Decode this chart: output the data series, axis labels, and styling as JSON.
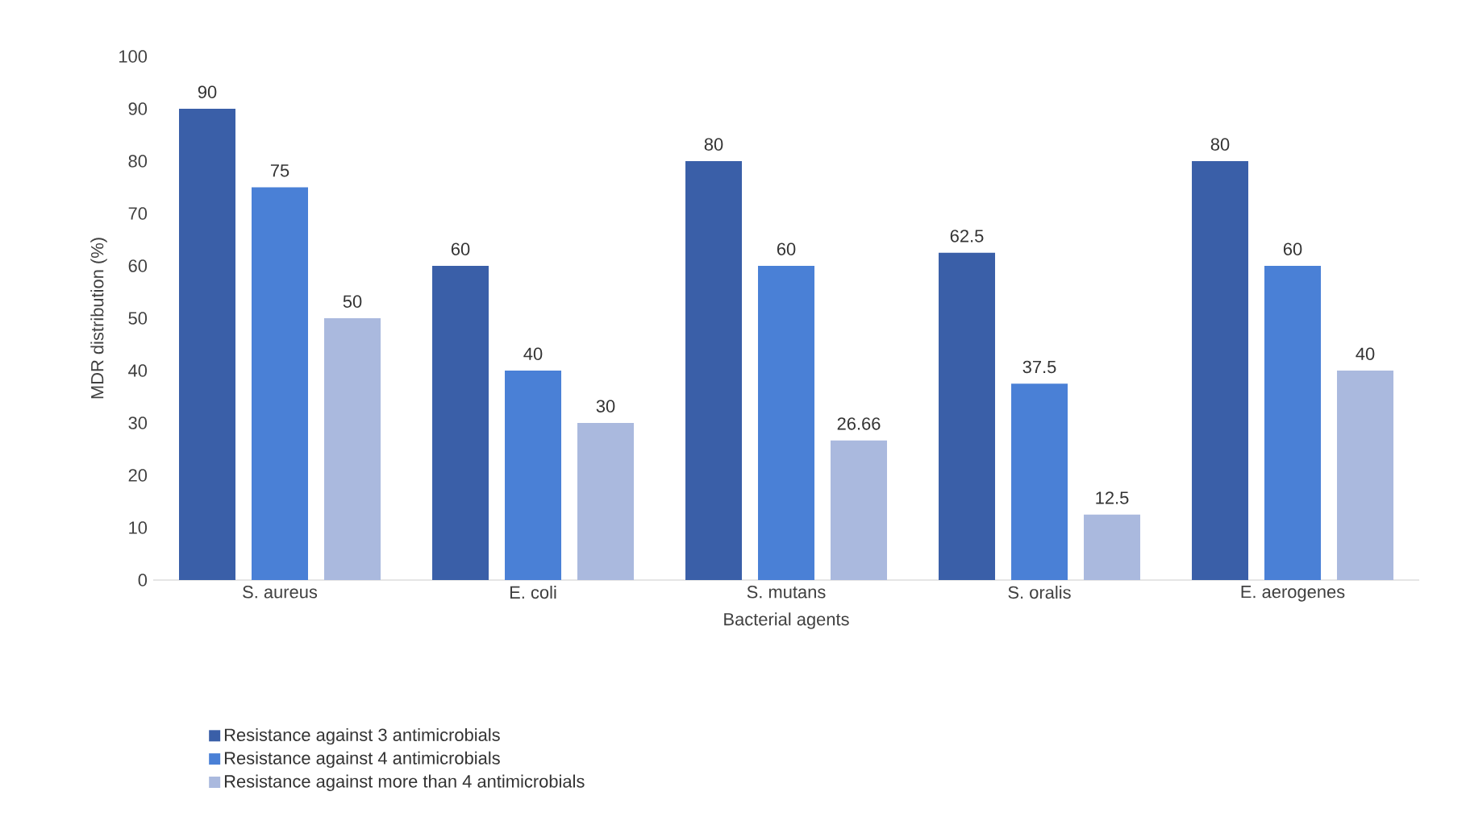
{
  "chart_data": {
    "type": "bar",
    "xlabel": "Bacterial agents",
    "ylabel": "MDR distribution (%)",
    "categories": [
      "S. aureus",
      "E. coli",
      "S. mutans",
      "S. oralis",
      "E. aerogenes"
    ],
    "series": [
      {
        "name": "Resistance against 3 antimicrobials",
        "color": "#3a5fa8",
        "values": [
          90,
          60,
          80,
          62.5,
          80
        ]
      },
      {
        "name": "Resistance against 4 antimicrobials",
        "color": "#4a80d6",
        "values": [
          75,
          40,
          60,
          37.5,
          60
        ]
      },
      {
        "name": "Resistance against more than 4 antimicrobials",
        "color": "#aab9de",
        "values": [
          50,
          30,
          26.66,
          12.5,
          40
        ]
      }
    ],
    "ylim": [
      0,
      100
    ],
    "yticks": [
      0,
      10,
      20,
      30,
      40,
      50,
      60,
      70,
      80,
      90,
      100
    ],
    "grid": false,
    "legend": "bottom",
    "data_labels": true
  }
}
